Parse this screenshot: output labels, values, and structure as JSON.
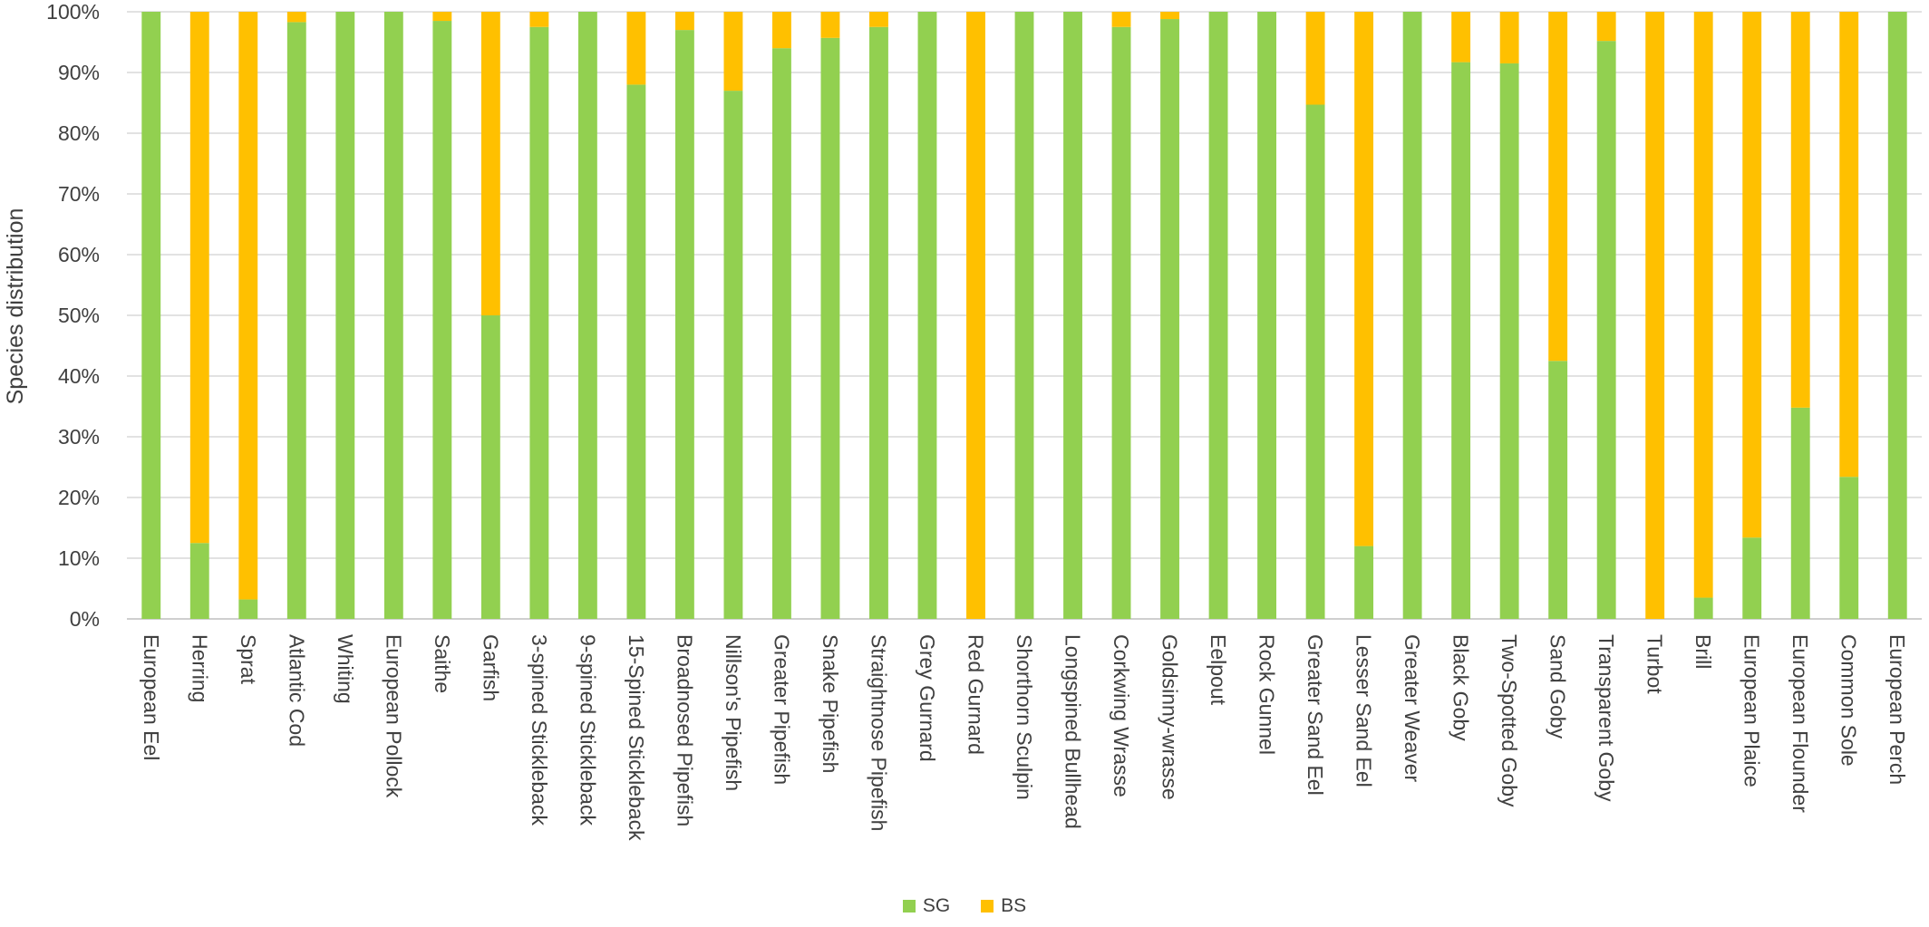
{
  "chart_data": {
    "type": "bar",
    "stacked": true,
    "percent_stacked": true,
    "title": "",
    "xlabel": "",
    "ylabel": "Species distribution",
    "ylim": [
      0,
      100
    ],
    "yticks": [
      "0%",
      "10%",
      "20%",
      "30%",
      "40%",
      "50%",
      "60%",
      "70%",
      "80%",
      "90%",
      "100%"
    ],
    "grid": true,
    "legend_position": "bottom",
    "categories": [
      "European Eel",
      "Herring",
      "Sprat",
      "Atlantic Cod",
      "Whiting",
      "European Pollock",
      "Saithe",
      "Garfish",
      "3-spined Stickleback",
      "9-spined Stickleback",
      "15-Spined Stickleback",
      "Broadnosed Pipefish",
      "Nillson's Pipefish",
      "Greater Pipefish",
      "Snake Pipefish",
      "Straightnose Pipefish",
      "Grey Gurnard",
      "Red Gurnard",
      "Shorthorn Sculpin",
      "Longspined Bullhead",
      "Corkwing Wrasse",
      "Goldsinny-wrasse",
      "Eelpout",
      "Rock Gunnel",
      "Greater Sand Eel",
      "Lesser Sand Eel",
      "Greater Weaver",
      "Black Goby",
      "Two-Spotted Goby",
      "Sand Goby",
      "Transparent Goby",
      "Turbot",
      "Brill",
      "European Plaice",
      "European Flounder",
      "Common Sole",
      "European Perch"
    ],
    "series": [
      {
        "name": "SG",
        "color": "#92D050",
        "values": [
          100,
          12.5,
          3.2,
          98.3,
          100,
          100,
          98.5,
          50,
          97.5,
          100,
          88,
          97,
          87,
          94,
          95.7,
          97.5,
          100,
          0,
          100,
          100,
          97.5,
          98.8,
          100,
          100,
          84.7,
          12,
          100,
          91.7,
          91.5,
          42.5,
          95.2,
          0,
          3.5,
          13.4,
          34.8,
          23.4,
          100
        ]
      },
      {
        "name": "BS",
        "color": "#FFC000",
        "values": [
          0,
          87.5,
          96.8,
          1.7,
          0,
          0,
          1.5,
          50,
          2.5,
          0,
          12,
          3,
          13,
          6,
          4.3,
          2.5,
          0,
          100,
          0,
          0,
          2.5,
          1.2,
          0,
          0,
          15.3,
          88,
          0,
          8.3,
          8.5,
          57.5,
          4.8,
          100,
          96.5,
          86.6,
          65.2,
          76.6,
          0
        ]
      }
    ]
  },
  "legend": {
    "sg_label": "SG",
    "bs_label": "BS"
  }
}
